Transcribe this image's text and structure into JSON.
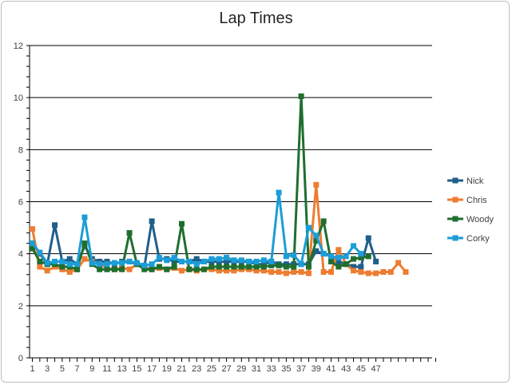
{
  "chart_data": {
    "type": "line",
    "title": "Lap Times",
    "xlabel": "",
    "ylabel": "",
    "ylim": [
      0,
      12
    ],
    "yticks": [
      0,
      2,
      4,
      6,
      8,
      10,
      12
    ],
    "xlim": [
      1,
      55
    ],
    "xticks": [
      1,
      3,
      5,
      7,
      9,
      11,
      13,
      15,
      17,
      19,
      21,
      23,
      25,
      27,
      29,
      31,
      33,
      35,
      37,
      39,
      41,
      43,
      45,
      47
    ],
    "grid": "horizontal",
    "legend": "right",
    "series": [
      {
        "name": "Nick",
        "color": "#1f5f8b",
        "values": [
          4.4,
          4.0,
          3.6,
          5.1,
          3.7,
          3.8,
          3.6,
          4.3,
          3.8,
          3.7,
          3.7,
          3.6,
          3.7,
          3.7,
          3.6,
          3.5,
          5.25,
          3.8,
          3.8,
          3.7,
          3.7,
          3.7,
          3.8,
          3.7,
          3.7,
          3.7,
          3.7,
          3.7,
          3.7,
          3.7,
          3.6,
          3.6,
          3.7,
          3.6,
          3.6,
          3.6,
          3.6,
          3.6,
          4.1,
          4.0,
          3.9,
          3.7,
          3.6,
          3.5,
          3.5,
          4.6,
          3.7
        ]
      },
      {
        "name": "Chris",
        "color": "#ed7d31",
        "values": [
          4.95,
          3.5,
          3.35,
          3.5,
          3.4,
          3.3,
          3.4,
          3.8,
          3.7,
          3.6,
          3.45,
          3.4,
          3.45,
          3.4,
          3.6,
          3.5,
          3.4,
          3.45,
          3.4,
          3.45,
          3.35,
          3.4,
          3.35,
          3.4,
          3.4,
          3.35,
          3.35,
          3.35,
          3.4,
          3.4,
          3.35,
          3.35,
          3.3,
          3.3,
          3.25,
          3.3,
          3.3,
          3.25,
          6.65,
          3.3,
          3.3,
          4.15,
          3.6,
          3.35,
          3.3,
          3.25,
          3.25,
          3.3,
          3.3,
          3.65,
          3.3
        ]
      },
      {
        "name": "Woody",
        "color": "#1f6e2e",
        "values": [
          4.2,
          3.7,
          3.6,
          3.6,
          3.5,
          3.5,
          3.4,
          4.4,
          3.6,
          3.4,
          3.4,
          3.4,
          3.4,
          4.8,
          3.6,
          3.4,
          3.4,
          3.5,
          3.4,
          3.5,
          5.15,
          3.4,
          3.4,
          3.4,
          3.5,
          3.5,
          3.5,
          3.5,
          3.5,
          3.5,
          3.5,
          3.5,
          3.55,
          3.55,
          3.5,
          3.5,
          10.05,
          3.5,
          4.5,
          5.25,
          3.7,
          3.5,
          3.6,
          3.8,
          3.85,
          3.9
        ]
      },
      {
        "name": "Corky",
        "color": "#1b9dd8",
        "values": [
          4.4,
          4.05,
          3.65,
          3.7,
          3.7,
          3.6,
          3.6,
          5.4,
          3.65,
          3.6,
          3.6,
          3.65,
          3.65,
          3.7,
          3.65,
          3.55,
          3.6,
          3.85,
          3.75,
          3.85,
          3.7,
          3.7,
          3.6,
          3.7,
          3.8,
          3.8,
          3.85,
          3.75,
          3.75,
          3.7,
          3.7,
          3.75,
          3.7,
          6.35,
          3.9,
          3.95,
          3.6,
          5.0,
          4.7,
          4.0,
          3.9,
          3.85,
          3.9,
          4.3,
          4.0
        ]
      }
    ]
  }
}
